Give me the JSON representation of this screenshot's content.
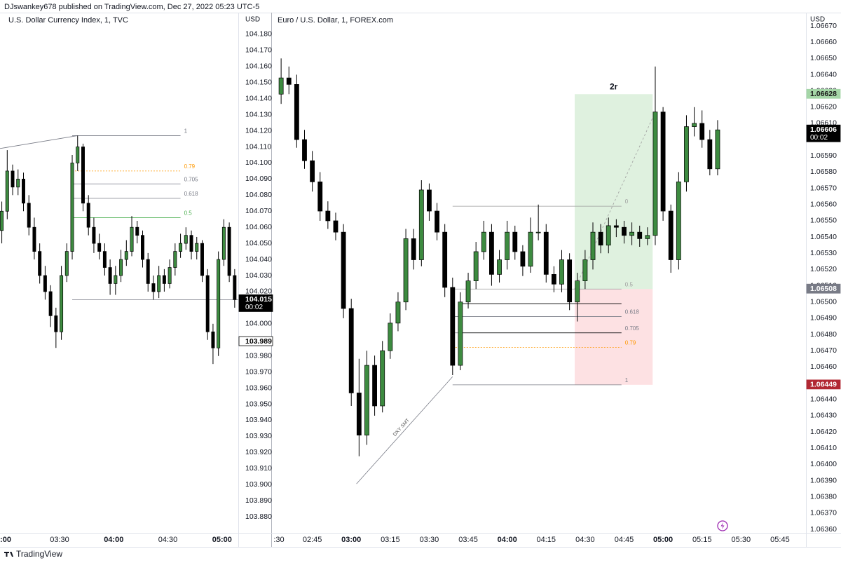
{
  "header": {
    "publisher": "DJswankey678 published on TradingView.com, Dec 27, 2022 05:23 UTC-5"
  },
  "footer": {
    "brand": "TradingView"
  },
  "chart_data": [
    {
      "type": "candlestick",
      "title": "U.S. Dollar Currency Index, 1, TVC",
      "currency": "USD",
      "up_color": "#3d8b40",
      "down_color": "#000000",
      "x": [
        "02:58",
        "03:01",
        "03:04",
        "03:07",
        "03:10",
        "03:13",
        "03:16",
        "03:19",
        "03:22",
        "03:25",
        "03:28",
        "03:31",
        "03:34",
        "03:37",
        "03:40",
        "03:43",
        "03:46",
        "03:49",
        "03:52",
        "03:55",
        "03:58",
        "04:01",
        "04:04",
        "04:07",
        "04:10",
        "04:13",
        "04:16",
        "04:19",
        "04:22",
        "04:25",
        "04:28",
        "04:31",
        "04:34",
        "04:37",
        "04:40",
        "04:43",
        "04:46",
        "04:49",
        "04:52",
        "04:55",
        "04:58",
        "05:01",
        "05:04",
        "05:07"
      ],
      "open": [
        104.058,
        104.07,
        104.095,
        104.085,
        104.09,
        104.075,
        104.06,
        104.045,
        104.03,
        104.02,
        104.005,
        103.995,
        104.03,
        104.045,
        104.1,
        104.11,
        104.075,
        104.06,
        104.05,
        104.045,
        104.035,
        104.025,
        104.03,
        104.04,
        104.045,
        104.06,
        104.055,
        104.04,
        104.025,
        104.02,
        104.03,
        104.025,
        104.035,
        104.045,
        104.05,
        104.055,
        104.045,
        104.05,
        104.03,
        103.995,
        103.985,
        104.04,
        104.06,
        104.03
      ],
      "high": [
        104.076,
        104.108,
        104.099,
        104.096,
        104.094,
        104.08,
        104.066,
        104.05,
        104.036,
        104.024,
        104.01,
        104.036,
        104.05,
        104.105,
        104.117,
        104.112,
        104.08,
        104.066,
        104.056,
        104.05,
        104.04,
        104.036,
        104.046,
        104.052,
        104.067,
        104.064,
        104.058,
        104.044,
        104.03,
        104.036,
        104.034,
        104.04,
        104.05,
        104.056,
        104.06,
        104.058,
        104.054,
        104.052,
        104.034,
        104.0,
        104.045,
        104.065,
        104.063,
        104.034
      ],
      "low": [
        104.05,
        104.065,
        104.08,
        104.08,
        104.07,
        104.055,
        104.04,
        104.025,
        104.015,
        103.998,
        103.985,
        103.99,
        104.026,
        104.04,
        104.095,
        104.07,
        104.055,
        104.044,
        104.04,
        104.03,
        104.018,
        104.018,
        104.026,
        104.036,
        104.042,
        104.05,
        104.035,
        104.02,
        104.015,
        104.016,
        104.02,
        104.022,
        104.03,
        104.041,
        104.046,
        104.04,
        104.04,
        104.026,
        103.99,
        103.975,
        103.98,
        104.036,
        104.026,
        104.01
      ],
      "close": [
        104.07,
        104.095,
        104.085,
        104.09,
        104.075,
        104.06,
        104.045,
        104.03,
        104.02,
        104.005,
        103.995,
        104.03,
        104.045,
        104.1,
        104.11,
        104.075,
        104.06,
        104.05,
        104.045,
        104.035,
        104.025,
        104.03,
        104.04,
        104.045,
        104.06,
        104.055,
        104.04,
        104.025,
        104.02,
        104.03,
        104.025,
        104.035,
        104.045,
        104.05,
        104.055,
        104.045,
        104.05,
        104.03,
        103.995,
        103.985,
        104.04,
        104.06,
        104.03,
        104.015
      ],
      "xlim": [
        "02:57",
        "05:09"
      ],
      "ylim": [
        103.87,
        104.19
      ],
      "xticks": [
        {
          "value": "03:00",
          "label": ":00"
        },
        "03:30",
        "04:00",
        "04:30",
        "05:00"
      ],
      "yticks": [
        {
          "value": 104.18,
          "label": "104.180"
        },
        {
          "value": 104.17,
          "label": "104.170"
        },
        {
          "value": 104.16,
          "label": "104.160"
        },
        {
          "value": 104.15,
          "label": "104.150"
        },
        {
          "value": 104.14,
          "label": "104.140"
        },
        {
          "value": 104.13,
          "label": "104.130"
        },
        {
          "value": 104.12,
          "label": "104.120"
        },
        {
          "value": 104.11,
          "label": "104.110"
        },
        {
          "value": 104.1,
          "label": "104.100"
        },
        {
          "value": 104.09,
          "label": "104.090"
        },
        {
          "value": 104.08,
          "label": "104.080"
        },
        {
          "value": 104.07,
          "label": "104.070"
        },
        {
          "value": 104.06,
          "label": "104.060"
        },
        {
          "value": 104.05,
          "label": "104.050"
        },
        {
          "value": 104.04,
          "label": "104.040"
        },
        {
          "value": 104.03,
          "label": "104.030"
        },
        {
          "value": 104.02,
          "label": "104.020"
        },
        {
          "value": 104.01,
          "label": "104.010"
        },
        {
          "value": 104,
          "label": "104.000"
        },
        {
          "value": 103.99,
          "label": "103.990"
        },
        {
          "value": 103.98,
          "label": "103.980"
        },
        {
          "value": 103.97,
          "label": "103.970"
        },
        {
          "value": 103.96,
          "label": "103.960"
        },
        {
          "value": 103.95,
          "label": "103.950"
        },
        {
          "value": 103.94,
          "label": "103.940"
        },
        {
          "value": 103.93,
          "label": "103.930"
        },
        {
          "value": 103.92,
          "label": "103.920"
        },
        {
          "value": 103.91,
          "label": "103.910"
        },
        {
          "value": 103.9,
          "label": "103.900"
        },
        {
          "value": 103.89,
          "label": "103.890"
        },
        {
          "value": 103.88,
          "label": "103.880"
        }
      ],
      "grid": false,
      "price_labels": [
        {
          "value": 104.015,
          "countdown": "00:02",
          "color": "#000000",
          "text_color": "#ffffff"
        },
        {
          "value": 103.989,
          "color": "#ffffff",
          "text_color": "#000000"
        }
      ],
      "fib": {
        "start": "03:37",
        "end": "04:37",
        "levels": [
          {
            "label": "1",
            "value": 104.117,
            "color": "#787b86"
          },
          {
            "label": "0.79",
            "value": 104.095,
            "color": "#ff9800"
          },
          {
            "label": "0.705",
            "value": 104.087,
            "color": "#787b86"
          },
          {
            "label": "0.618",
            "value": 104.078,
            "color": "#787b86"
          },
          {
            "label": "0.5",
            "value": 104.066,
            "color": "#4caf50"
          }
        ]
      },
      "lines": [
        {
          "x": [
            "02:57",
            "03:40"
          ],
          "y": [
            104.109,
            104.117
          ],
          "color": "#787b86"
        },
        {
          "x": [
            "03:37",
            "05:09"
          ],
          "y": [
            104.015,
            104.015
          ],
          "color": "#787b86"
        }
      ]
    },
    {
      "type": "candlestick",
      "title": "Euro / U.S. Dollar, 1, FOREX.com",
      "currency": "USD",
      "up_color": "#3d8b40",
      "down_color": "#000000",
      "x": [
        "02:33",
        "02:36",
        "02:39",
        "02:42",
        "02:45",
        "02:48",
        "02:51",
        "02:54",
        "02:57",
        "03:00",
        "03:03",
        "03:06",
        "03:09",
        "03:12",
        "03:15",
        "03:18",
        "03:21",
        "03:24",
        "03:27",
        "03:30",
        "03:33",
        "03:36",
        "03:39",
        "03:42",
        "03:45",
        "03:48",
        "03:51",
        "03:54",
        "03:57",
        "04:00",
        "04:03",
        "04:06",
        "04:09",
        "04:12",
        "04:15",
        "04:18",
        "04:21",
        "04:24",
        "04:27",
        "04:30",
        "04:33",
        "04:36",
        "04:39",
        "04:42",
        "04:45",
        "04:48",
        "04:51",
        "04:54",
        "04:57",
        "05:00",
        "05:03",
        "05:06",
        "05:09",
        "05:12",
        "05:15",
        "05:18",
        "05:21"
      ],
      "open": [
        1.06628,
        1.06638,
        1.06634,
        1.066,
        1.06587,
        1.06574,
        1.06556,
        1.0655,
        1.06543,
        1.06496,
        1.06444,
        1.06418,
        1.06461,
        1.06436,
        1.0647,
        1.06487,
        1.065,
        1.06539,
        1.06526,
        1.06569,
        1.06556,
        1.06543,
        1.06509,
        1.06461,
        1.065,
        1.06513,
        1.06531,
        1.06543,
        1.06517,
        1.06526,
        1.06543,
        1.06531,
        1.06522,
        1.06543,
        1.06543,
        1.06517,
        1.06511,
        1.06526,
        1.065,
        1.06513,
        1.06526,
        1.06543,
        1.06535,
        1.06547,
        1.06546,
        1.06541,
        1.06543,
        1.06539,
        1.06541,
        1.06617,
        1.06556,
        1.06526,
        1.06574,
        1.06608,
        1.0661,
        1.066,
        1.06582
      ],
      "high": [
        1.0665,
        1.06645,
        1.0664,
        1.06606,
        1.06593,
        1.0658,
        1.06562,
        1.06555,
        1.06548,
        1.06502,
        1.06465,
        1.0647,
        1.06467,
        1.06476,
        1.06493,
        1.06506,
        1.06545,
        1.06545,
        1.06575,
        1.06573,
        1.06561,
        1.06548,
        1.06515,
        1.06506,
        1.06518,
        1.06537,
        1.0655,
        1.06548,
        1.06532,
        1.0655,
        1.06547,
        1.06535,
        1.06552,
        1.0656,
        1.06548,
        1.06522,
        1.06532,
        1.0653,
        1.06518,
        1.06532,
        1.06549,
        1.06548,
        1.06552,
        1.06551,
        1.0655,
        1.06549,
        1.06547,
        1.06546,
        1.06645,
        1.0662,
        1.0656,
        1.0658,
        1.06615,
        1.0662,
        1.06618,
        1.06606,
        1.06612
      ],
      "low": [
        1.06622,
        1.06628,
        1.06595,
        1.06582,
        1.06568,
        1.0655,
        1.06545,
        1.06538,
        1.0649,
        1.06436,
        1.06405,
        1.06412,
        1.0643,
        1.06432,
        1.06465,
        1.06482,
        1.06495,
        1.0652,
        1.06522,
        1.0655,
        1.06538,
        1.06503,
        1.06455,
        1.06458,
        1.06496,
        1.06508,
        1.06526,
        1.0651,
        1.06512,
        1.0652,
        1.06526,
        1.06516,
        1.06518,
        1.06538,
        1.06512,
        1.06506,
        1.06506,
        1.06495,
        1.06488,
        1.06508,
        1.0652,
        1.0653,
        1.0653,
        1.0654,
        1.06536,
        1.06535,
        1.06534,
        1.06535,
        1.06535,
        1.0655,
        1.06518,
        1.0652,
        1.06568,
        1.06602,
        1.06595,
        1.06578,
        1.06578
      ],
      "close": [
        1.06638,
        1.06634,
        1.066,
        1.06587,
        1.06574,
        1.06556,
        1.0655,
        1.06543,
        1.06496,
        1.06444,
        1.06418,
        1.06461,
        1.06436,
        1.0647,
        1.06487,
        1.065,
        1.06539,
        1.06526,
        1.06569,
        1.06556,
        1.06543,
        1.06509,
        1.06461,
        1.065,
        1.06513,
        1.06531,
        1.06543,
        1.06517,
        1.06526,
        1.06543,
        1.06531,
        1.06522,
        1.06543,
        1.06543,
        1.06517,
        1.06511,
        1.06526,
        1.065,
        1.06513,
        1.06526,
        1.06543,
        1.06535,
        1.06547,
        1.06546,
        1.06541,
        1.06543,
        1.06539,
        1.06541,
        1.06617,
        1.06556,
        1.06526,
        1.06574,
        1.06608,
        1.0661,
        1.066,
        1.06582,
        1.06606
      ],
      "xlim": [
        "02:30",
        "05:55"
      ],
      "ylim": [
        1.0636,
        1.0667
      ],
      "xticks": [
        {
          "value": "02:30",
          "label": ":30"
        },
        "02:45",
        "03:00",
        "03:15",
        "03:30",
        "03:45",
        "04:00",
        "04:15",
        "04:30",
        "04:45",
        "05:00",
        "05:15",
        "05:30",
        "05:45"
      ],
      "yticks": [
        {
          "value": 1.0667,
          "label": "1.06670"
        },
        {
          "value": 1.0666,
          "label": "1.06660"
        },
        {
          "value": 1.0665,
          "label": "1.06650"
        },
        {
          "value": 1.0664,
          "label": "1.06640"
        },
        {
          "value": 1.0663,
          "label": "1.06630"
        },
        {
          "value": 1.0662,
          "label": "1.06620"
        },
        {
          "value": 1.0661,
          "label": "1.06610"
        },
        {
          "value": 1.066,
          "label": "1.06600"
        },
        {
          "value": 1.0659,
          "label": "1.06590"
        },
        {
          "value": 1.0658,
          "label": "1.06580"
        },
        {
          "value": 1.0657,
          "label": "1.06570"
        },
        {
          "value": 1.0656,
          "label": "1.06560"
        },
        {
          "value": 1.0655,
          "label": "1.06550"
        },
        {
          "value": 1.0654,
          "label": "1.06540"
        },
        {
          "value": 1.0653,
          "label": "1.06530"
        },
        {
          "value": 1.0652,
          "label": "1.06520"
        },
        {
          "value": 1.0651,
          "label": "1.06510"
        },
        {
          "value": 1.065,
          "label": "1.06500"
        },
        {
          "value": 1.0649,
          "label": "1.06490"
        },
        {
          "value": 1.0648,
          "label": "1.06480"
        },
        {
          "value": 1.0647,
          "label": "1.06470"
        },
        {
          "value": 1.0646,
          "label": "1.06460"
        },
        {
          "value": 1.0645,
          "label": "1.06450"
        },
        {
          "value": 1.0644,
          "label": "1.06440"
        },
        {
          "value": 1.0643,
          "label": "1.06430"
        },
        {
          "value": 1.0642,
          "label": "1.06420"
        },
        {
          "value": 1.0641,
          "label": "1.06410"
        },
        {
          "value": 1.064,
          "label": "1.06400"
        },
        {
          "value": 1.0639,
          "label": "1.06390"
        },
        {
          "value": 1.0638,
          "label": "1.06380"
        },
        {
          "value": 1.0637,
          "label": "1.06370"
        },
        {
          "value": 1.0636,
          "label": "1.06360"
        }
      ],
      "grid": false,
      "price_labels": [
        {
          "value": 1.06628,
          "color": "#a5d6a7",
          "text_color": "#1b1b1b"
        },
        {
          "value": 1.06606,
          "countdown": "00:02",
          "color": "#000000",
          "text_color": "#ffffff"
        },
        {
          "value": 1.06508,
          "color": "#787b86",
          "text_color": "#ffffff"
        },
        {
          "value": 1.06449,
          "color": "#b22833",
          "text_color": "#ffffff"
        }
      ],
      "fib": {
        "start": "03:39",
        "end": "04:44",
        "levels": [
          {
            "label": "0",
            "value": 1.06559,
            "color": "#9e9e9e"
          },
          {
            "label": "0.5",
            "value": 1.06508,
            "color": "#9e9e9e"
          },
          {
            "label": "0.618",
            "value": 1.06491,
            "color": "#787b86"
          },
          {
            "label": "0.705",
            "value": 1.06481,
            "color": "#787b86"
          },
          {
            "label": "0.79",
            "value": 1.06472,
            "color": "#ff9800"
          },
          {
            "label": "1",
            "value": 1.06449,
            "color": "#787b86"
          }
        ]
      },
      "position": {
        "label": "2r",
        "start": "04:26",
        "end": "04:56",
        "target": 1.06628,
        "entry": 1.06508,
        "stop": 1.06449
      },
      "lines": [
        {
          "x": [
            "03:02",
            "03:39"
          ],
          "y": [
            1.06388,
            1.06454
          ],
          "color": "#787b86",
          "label": "DXY SMT"
        },
        {
          "x": [
            "04:26",
            "04:57"
          ],
          "y": [
            1.06508,
            1.06617
          ],
          "color": "#9e9e9e",
          "style": "dashed"
        },
        {
          "x": [
            "03:42",
            "04:44"
          ],
          "y": [
            1.06499,
            1.06499
          ],
          "color": "#000000"
        },
        {
          "x": [
            "03:42",
            "04:44"
          ],
          "y": [
            1.06481,
            1.06481
          ],
          "color": "#000000"
        }
      ]
    }
  ]
}
